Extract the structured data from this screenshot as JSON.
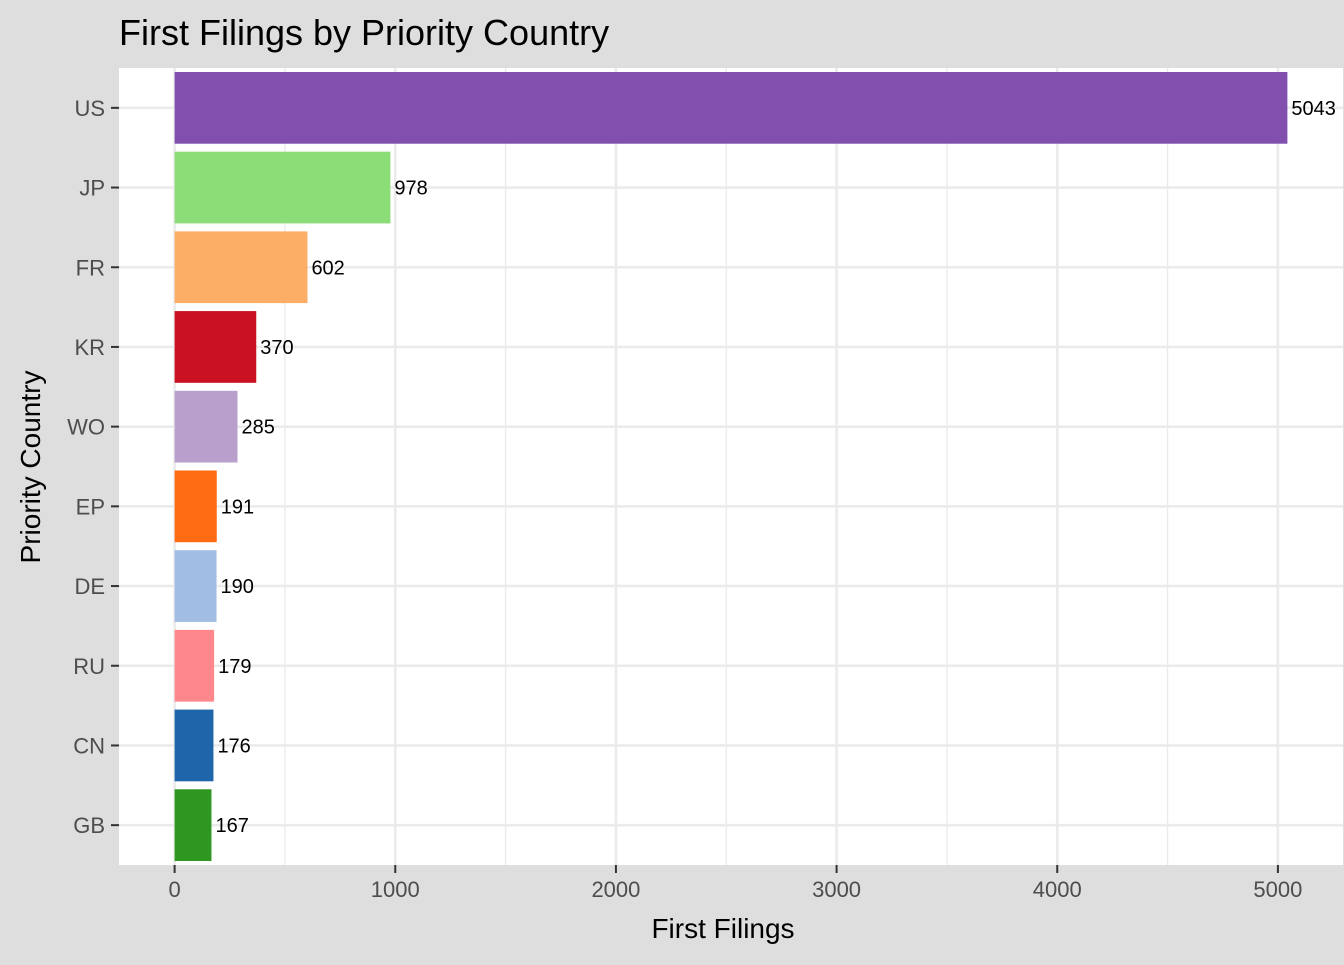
{
  "chart_data": {
    "type": "bar",
    "orientation": "horizontal",
    "title": "First Filings by Priority Country",
    "xlabel": "First Filings",
    "ylabel": "Priority Country",
    "categories": [
      "US",
      "JP",
      "FR",
      "KR",
      "WO",
      "EP",
      "DE",
      "RU",
      "CN",
      "GB"
    ],
    "values": [
      5043,
      978,
      602,
      370,
      285,
      191,
      190,
      179,
      176,
      167
    ],
    "colors": [
      "#8150af",
      "#8cdc78",
      "#fdae66",
      "#ca1121",
      "#b99fcb",
      "#ff6b12",
      "#a1bde3",
      "#fe878b",
      "#1e66a9",
      "#2d9722"
    ],
    "xlim": [
      -252,
      5295
    ],
    "x_ticks": [
      0,
      1000,
      2000,
      3000,
      4000,
      5000
    ],
    "x_tick_labels": [
      "0",
      "1000",
      "2000",
      "3000",
      "4000",
      "5000"
    ],
    "grid": true,
    "legend": "none",
    "panel_background": "#ffffff",
    "plot_background": "#dedede"
  }
}
